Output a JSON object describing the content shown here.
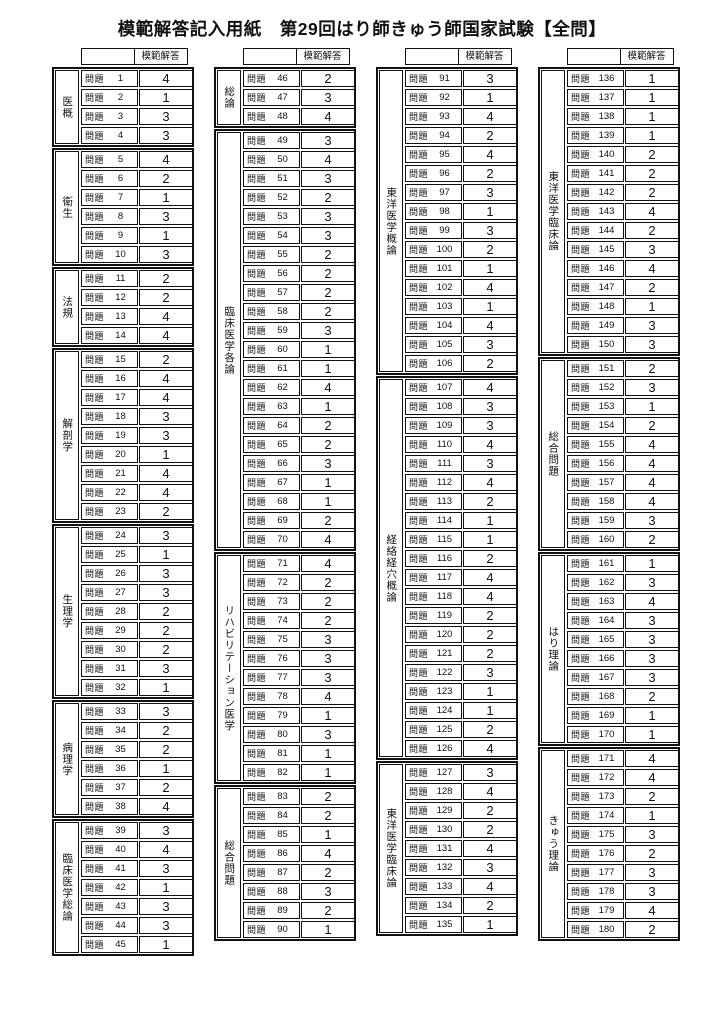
{
  "title": "模範解答記入用紙　第29回はり師きゅう師国家試験【全問】",
  "answer_header": "模範解答",
  "question_prefix": "問題",
  "columns": [
    {
      "groups": [
        {
          "category": "医概",
          "start": 1,
          "answers": [
            4,
            1,
            3,
            3
          ]
        },
        {
          "category": "衛生",
          "start": 5,
          "answers": [
            4,
            2,
            1,
            3,
            1,
            3
          ]
        },
        {
          "category": "法規",
          "start": 11,
          "answers": [
            2,
            2,
            4,
            4
          ]
        },
        {
          "category": "解剖学",
          "start": 15,
          "answers": [
            2,
            4,
            4,
            3,
            3,
            1,
            4,
            4,
            2
          ]
        },
        {
          "category": "生理学",
          "start": 24,
          "answers": [
            3,
            1,
            3,
            3,
            2,
            2,
            2,
            3,
            1
          ]
        },
        {
          "category": "病理学",
          "start": 33,
          "answers": [
            3,
            2,
            2,
            1,
            2,
            4
          ]
        },
        {
          "category": "臨床医学総論",
          "start": 39,
          "answers": [
            3,
            4,
            3,
            1,
            3,
            3,
            1
          ]
        }
      ]
    },
    {
      "groups": [
        {
          "category": "総論",
          "start": 46,
          "answers": [
            2,
            3,
            4
          ]
        },
        {
          "category": "臨床医学各論",
          "start": 49,
          "answers": [
            3,
            4,
            3,
            2,
            3,
            3,
            2,
            2,
            2,
            2,
            3,
            1,
            1,
            4,
            1,
            2,
            2,
            3,
            1,
            1,
            2,
            4
          ]
        },
        {
          "category": "リハビリテーション医学",
          "start": 71,
          "answers": [
            4,
            2,
            2,
            2,
            3,
            3,
            3,
            4,
            1,
            3,
            1,
            1
          ]
        },
        {
          "category": "総合問題",
          "start": 83,
          "answers": [
            2,
            2,
            1,
            4,
            2,
            3,
            2,
            1
          ]
        }
      ]
    },
    {
      "groups": [
        {
          "category": "東洋医学概論",
          "start": 91,
          "answers": [
            3,
            1,
            4,
            2,
            4,
            2,
            3,
            1,
            3,
            2,
            1,
            4,
            1,
            4,
            3,
            2
          ]
        },
        {
          "category": "経絡経穴概論",
          "start": 107,
          "answers": [
            4,
            3,
            3,
            4,
            3,
            4,
            2,
            1,
            1,
            2,
            4,
            4,
            2,
            2,
            2,
            3,
            1,
            1,
            2,
            4
          ]
        },
        {
          "category": "東洋医学臨床論",
          "start": 127,
          "answers": [
            3,
            4,
            2,
            2,
            4,
            3,
            4,
            2,
            1
          ]
        }
      ]
    },
    {
      "groups": [
        {
          "category": "東洋医学臨床論",
          "start": 136,
          "answers": [
            1,
            1,
            1,
            1,
            2,
            2,
            2,
            4,
            2,
            3,
            4,
            2,
            1,
            3,
            3
          ]
        },
        {
          "category": "総合問題",
          "start": 151,
          "answers": [
            2,
            3,
            1,
            2,
            4,
            4,
            4,
            4,
            3,
            2
          ]
        },
        {
          "category": "はり理論",
          "start": 161,
          "answers": [
            1,
            3,
            4,
            3,
            3,
            3,
            3,
            2,
            1,
            1
          ]
        },
        {
          "category": "きゅう理論",
          "start": 171,
          "answers": [
            4,
            4,
            2,
            1,
            3,
            2,
            3,
            3,
            4,
            2
          ]
        }
      ]
    }
  ]
}
